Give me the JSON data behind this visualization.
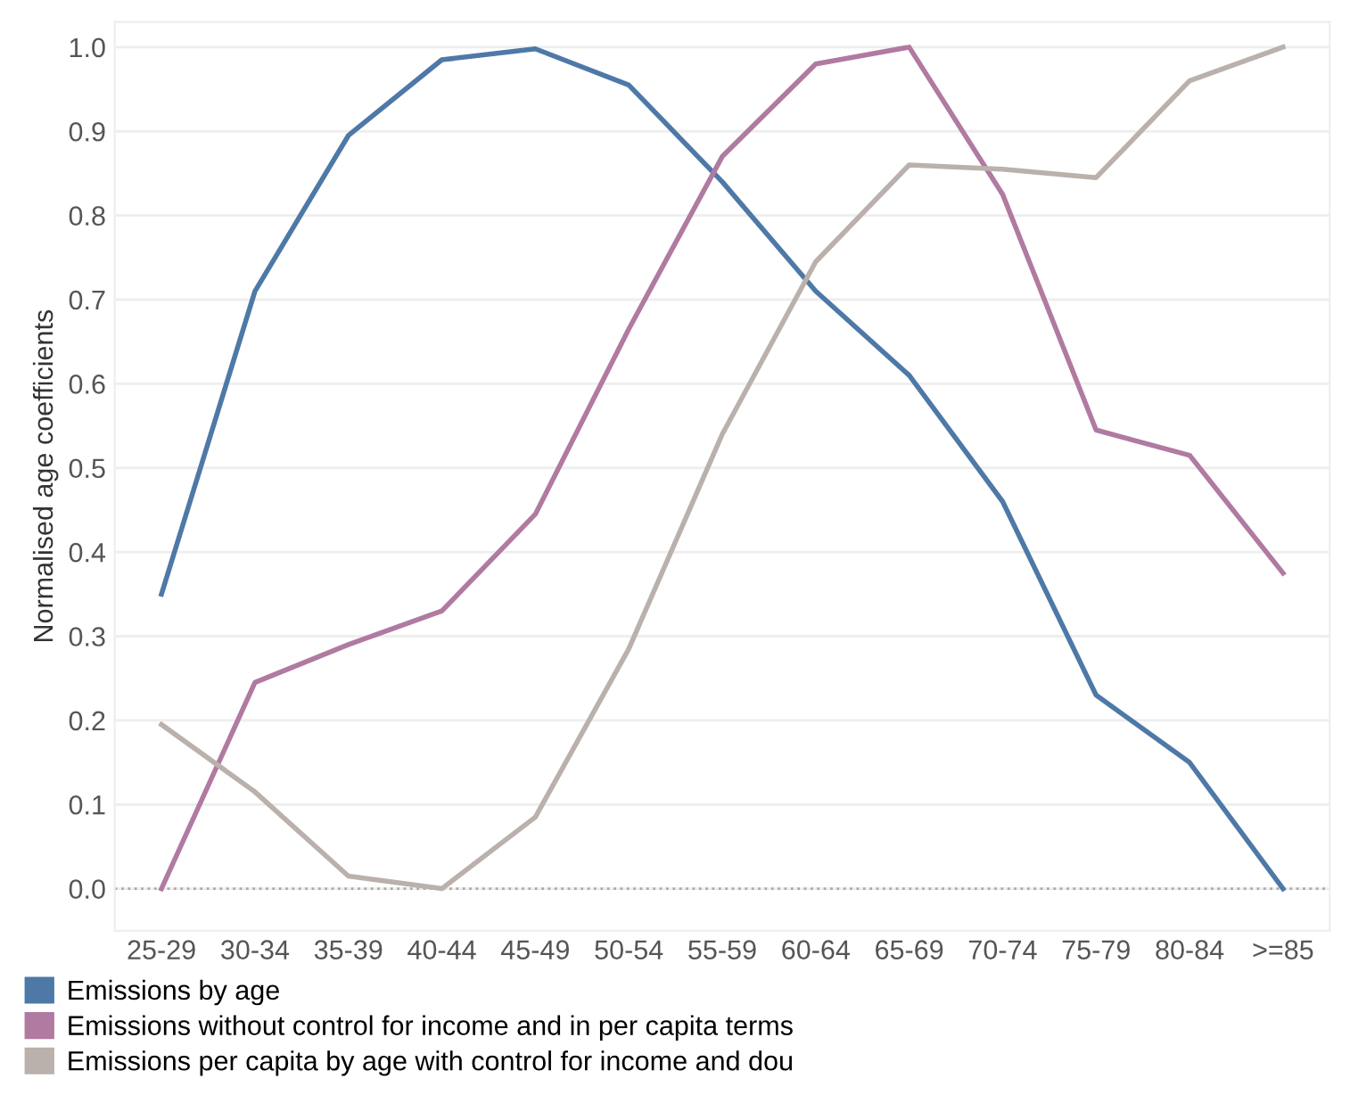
{
  "chart_data": {
    "type": "line",
    "ylabel": "Normalised age coefficients",
    "categories": [
      "25-29",
      "30-34",
      "35-39",
      "40-44",
      "45-49",
      "50-54",
      "55-59",
      "60-64",
      "65-69",
      "70-74",
      "75-79",
      "80-84",
      ">=85"
    ],
    "series": [
      {
        "name": "Emissions by age",
        "color": "#4e79a7",
        "values": [
          0.35,
          0.71,
          0.895,
          0.985,
          0.998,
          0.955,
          0.84,
          0.71,
          0.61,
          0.46,
          0.23,
          0.15,
          0.0
        ]
      },
      {
        "name": "Emissions without control for income and in per capita terms",
        "color": "#b07aa1",
        "values": [
          0.0,
          0.245,
          0.29,
          0.33,
          0.445,
          0.665,
          0.87,
          0.98,
          1.0,
          0.825,
          0.545,
          0.515,
          0.375
        ]
      },
      {
        "name": "Emissions per capita by age with control for income and dou",
        "color": "#bab0ac",
        "values": [
          0.195,
          0.115,
          0.015,
          0.0,
          0.085,
          0.285,
          0.54,
          0.745,
          0.86,
          0.855,
          0.845,
          0.96,
          1.0
        ]
      }
    ],
    "ylim": [
      -0.05,
      1.03
    ],
    "yticks": [
      {
        "value": 0,
        "label": "0.0"
      },
      0.1,
      0.2,
      0.3,
      0.4,
      0.5,
      0.6,
      0.7,
      0.8,
      0.9,
      {
        "value": 1,
        "label": "1.0"
      }
    ],
    "ref_lines": [
      {
        "axis": "y",
        "value": 0,
        "color": "#aaaaaa",
        "line_style": "dotted"
      }
    ],
    "grid": "y",
    "legend": "bottom left",
    "marker": "none",
    "line_style": "solid"
  }
}
